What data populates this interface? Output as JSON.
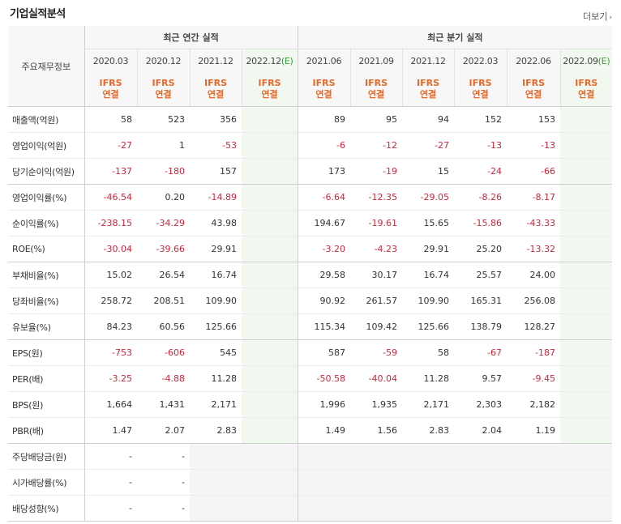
{
  "page_title": "기업실적분석",
  "more_label": "더보기",
  "more_icon": "chevron-right-icon",
  "table": {
    "corner_label": "주요재무정보",
    "annual_label": "최근 연간 실적",
    "quarter_label": "최근 분기 실적",
    "annual_periods": [
      "2020.03",
      "2020.12",
      "2021.12",
      "2022.12"
    ],
    "quarter_periods": [
      "2021.06",
      "2021.09",
      "2021.12",
      "2022.03",
      "2022.06",
      "2022.09"
    ],
    "estimate_mark": "(E)",
    "ifrs_top": "IFRS",
    "ifrs_bottom": "연결",
    "rows": [
      {
        "label": "매출액(억원)",
        "values": [
          "58",
          "523",
          "356",
          "",
          "89",
          "95",
          "94",
          "152",
          "153",
          ""
        ]
      },
      {
        "label": "영업이익(억원)",
        "values": [
          "-27",
          "1",
          "-53",
          "",
          "-6",
          "-12",
          "-27",
          "-13",
          "-13",
          ""
        ]
      },
      {
        "label": "당기순이익(억원)",
        "values": [
          "-137",
          "-180",
          "157",
          "",
          "173",
          "-19",
          "15",
          "-24",
          "-66",
          ""
        ]
      },
      {
        "label": "영업이익률(%)",
        "values": [
          "-46.54",
          "0.20",
          "-14.89",
          "",
          "-6.64",
          "-12.35",
          "-29.05",
          "-8.26",
          "-8.17",
          ""
        ]
      },
      {
        "label": "순이익률(%)",
        "values": [
          "-238.15",
          "-34.29",
          "43.98",
          "",
          "194.67",
          "-19.61",
          "15.65",
          "-15.86",
          "-43.33",
          ""
        ]
      },
      {
        "label": "ROE(%)",
        "values": [
          "-30.04",
          "-39.66",
          "29.91",
          "",
          "-3.20",
          "-4.23",
          "29.91",
          "25.20",
          "-13.32",
          ""
        ]
      },
      {
        "label": "부채비율(%)",
        "values": [
          "15.02",
          "26.54",
          "16.74",
          "",
          "29.58",
          "30.17",
          "16.74",
          "25.57",
          "24.00",
          ""
        ]
      },
      {
        "label": "당좌비율(%)",
        "values": [
          "258.72",
          "208.51",
          "109.90",
          "",
          "90.92",
          "261.57",
          "109.90",
          "165.31",
          "256.08",
          ""
        ]
      },
      {
        "label": "유보율(%)",
        "values": [
          "84.23",
          "60.56",
          "125.66",
          "",
          "115.34",
          "109.42",
          "125.66",
          "138.79",
          "128.27",
          ""
        ]
      },
      {
        "label": "EPS(원)",
        "values": [
          "-753",
          "-606",
          "545",
          "",
          "587",
          "-59",
          "58",
          "-67",
          "-187",
          ""
        ]
      },
      {
        "label": "PER(배)",
        "values": [
          "-3.25",
          "-4.88",
          "11.28",
          "",
          "-50.58",
          "-40.04",
          "11.28",
          "9.57",
          "-9.45",
          ""
        ]
      },
      {
        "label": "BPS(원)",
        "values": [
          "1,664",
          "1,431",
          "2,171",
          "",
          "1,996",
          "1,935",
          "2,171",
          "2,303",
          "2,182",
          ""
        ]
      },
      {
        "label": "PBR(배)",
        "values": [
          "1.47",
          "2.07",
          "2.83",
          "",
          "1.49",
          "1.56",
          "2.83",
          "2.04",
          "1.19",
          ""
        ]
      },
      {
        "label": "주당배당금(원)",
        "values": [
          "-",
          "-",
          "",
          "",
          "",
          "",
          "",
          "",
          "",
          ""
        ]
      },
      {
        "label": "시가배당률(%)",
        "values": [
          "-",
          "-",
          "",
          "",
          "",
          "",
          "",
          "",
          "",
          ""
        ]
      },
      {
        "label": "배당성향(%)",
        "values": [
          "-",
          "-",
          "",
          "",
          "",
          "",
          "",
          "",
          "",
          ""
        ]
      }
    ]
  },
  "colors": {
    "negative": "#d2263a",
    "ifrs": "#e8682a",
    "estimate_bg": "#f1f8ef",
    "estimate_mark": "#3a9c3a"
  }
}
